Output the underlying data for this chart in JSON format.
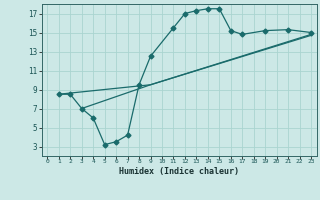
{
  "xlabel": "Humidex (Indice chaleur)",
  "bg_color": "#cce8e6",
  "line_color": "#1a6b6b",
  "grid_color": "#aad4d0",
  "xlim": [
    -0.5,
    23.5
  ],
  "ylim": [
    2,
    18
  ],
  "xticks": [
    0,
    1,
    2,
    3,
    4,
    5,
    6,
    7,
    8,
    9,
    10,
    11,
    12,
    13,
    14,
    15,
    16,
    17,
    18,
    19,
    20,
    21,
    22,
    23
  ],
  "yticks": [
    3,
    5,
    7,
    9,
    11,
    13,
    15,
    17
  ],
  "line1_x": [
    1,
    2,
    3,
    4,
    5,
    6,
    7,
    8,
    9,
    11,
    12,
    13,
    14,
    15,
    16,
    17,
    19,
    21,
    23
  ],
  "line1_y": [
    8.5,
    8.5,
    7.0,
    6.0,
    3.2,
    3.5,
    4.2,
    9.5,
    12.5,
    15.5,
    17.0,
    17.3,
    17.5,
    17.5,
    15.2,
    14.8,
    15.2,
    15.3,
    15.0
  ],
  "line2_x": [
    1,
    9,
    23
  ],
  "line2_y": [
    8.5,
    9.5,
    14.8
  ],
  "line3_x": [
    3,
    9,
    23
  ],
  "line3_y": [
    7.0,
    9.5,
    14.7
  ]
}
